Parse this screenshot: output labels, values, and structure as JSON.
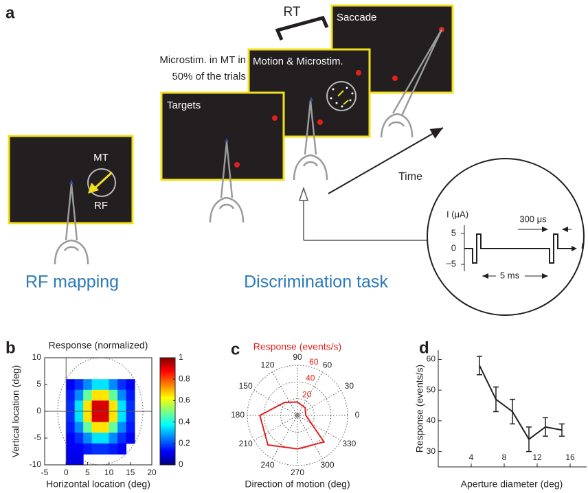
{
  "panel_a": {
    "letter": "a",
    "rt": "RT",
    "saccade": "Saccade",
    "microstim_1": "Microstim. in MT in",
    "microstim_2": "50% of the trials",
    "motion": "Motion & Microstim.",
    "targets": "Targets",
    "mt": "MT",
    "rf": "RF",
    "time": "Time",
    "rf_mapping": "RF mapping",
    "discrimination": "Discrimination task",
    "current": "I (μA)",
    "pulse_width": "300 μs",
    "inset_ticks": [
      "5",
      "0",
      "−5"
    ],
    "t": "t",
    "interval": "5 ms"
  },
  "chart_data": [
    {
      "type": "heatmap",
      "letter": "b",
      "title": "Response (normalized)",
      "xlabel": "Horizontal location (deg)",
      "ylabel": "Vertical location (deg)",
      "x": [
        1,
        3,
        5,
        7,
        9,
        11,
        13,
        15
      ],
      "y": [
        5,
        3,
        1,
        -1,
        -3,
        -5,
        -7,
        -9
      ],
      "z": [
        [
          0.12,
          0.17,
          0.26,
          0.35,
          0.35,
          0.26,
          0.17,
          0.12
        ],
        [
          0.15,
          0.26,
          0.47,
          0.65,
          0.65,
          0.47,
          0.26,
          0.15
        ],
        [
          0.17,
          0.35,
          0.65,
          0.91,
          0.91,
          0.65,
          0.35,
          0.17
        ],
        [
          0.17,
          0.35,
          0.65,
          0.91,
          0.91,
          0.65,
          0.35,
          0.17
        ],
        [
          0.15,
          0.26,
          0.47,
          0.65,
          0.65,
          0.47,
          0.26,
          0.15
        ],
        [
          0.12,
          0.17,
          0.26,
          0.35,
          0.35,
          0.26,
          0.17,
          0.12
        ],
        [
          0.11,
          0.12,
          0.15,
          0.17,
          0.17,
          0.15,
          0.12,
          null
        ],
        [
          0.1,
          0.1,
          null,
          null,
          null,
          null,
          null,
          null
        ]
      ],
      "xlim": [
        -5,
        20
      ],
      "xticks": [
        -5,
        0,
        5,
        10,
        15,
        20
      ],
      "ylim": [
        -10,
        10
      ],
      "yticks": [
        -10,
        -5,
        0,
        5,
        10
      ],
      "clim": [
        0,
        1
      ],
      "cticks": [
        0,
        0.2,
        0.4,
        0.6,
        0.8,
        1
      ],
      "colormap": "jet"
    },
    {
      "type": "polar",
      "letter": "c",
      "title": "Response (events/s)",
      "xlabel": "Direction of motion (deg)",
      "x": [
        0,
        45,
        90,
        135,
        180,
        225,
        270,
        315
      ],
      "values": [
        10,
        13,
        16,
        22,
        45,
        50,
        40,
        45
      ],
      "color": "#e0201b",
      "rlim": [
        0,
        60
      ],
      "rticks": [
        20,
        40,
        60
      ],
      "thetaticks": [
        0,
        30,
        60,
        90,
        120,
        150,
        180,
        210,
        240,
        270,
        300,
        330
      ]
    },
    {
      "type": "line",
      "letter": "d",
      "xlabel": "Aperture diameter (deg)",
      "ylabel": "Response (events/s)",
      "x": [
        5,
        7,
        9,
        11,
        13,
        15
      ],
      "values": [
        58,
        47,
        43,
        34,
        38,
        37
      ],
      "errors": [
        3,
        4,
        4,
        4,
        3,
        2
      ],
      "color": "#231f20",
      "xlim": [
        0,
        18
      ],
      "xticks": [
        4,
        8,
        12,
        16
      ],
      "ylim": [
        25,
        63
      ],
      "yticks": [
        30,
        40,
        50,
        60
      ]
    }
  ]
}
